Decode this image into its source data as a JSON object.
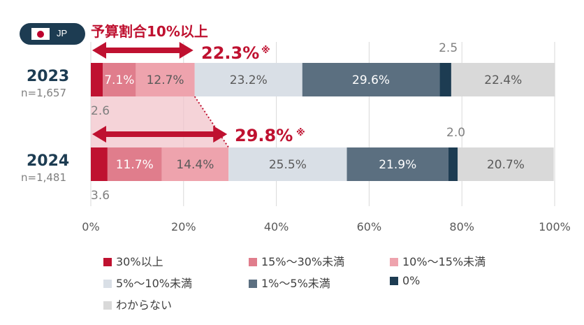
{
  "badge": {
    "country": "JP"
  },
  "annotation": {
    "title": "予算割合10%以上",
    "values": [
      "22.3%",
      "29.8%"
    ],
    "mark": "※"
  },
  "chart_data": {
    "type": "bar",
    "orientation": "horizontal",
    "stacked": true,
    "categories": [
      "2023",
      "2024"
    ],
    "sample_sizes": [
      "n=1,657",
      "n=1,481"
    ],
    "xlim": [
      0,
      100
    ],
    "x_ticks": [
      "0%",
      "20%",
      "40%",
      "60%",
      "80%",
      "100%"
    ],
    "grid": true,
    "legend_position": "bottom",
    "series": [
      {
        "name": "30%以上",
        "color": "#bf1130",
        "values": [
          2.6,
          3.6
        ],
        "labels": [
          "2.6",
          "3.6"
        ],
        "label_position": "below"
      },
      {
        "name": "15%～30%未満",
        "color": "#e07d8c",
        "values": [
          7.1,
          11.7
        ],
        "labels": [
          "7.1%",
          "11.7%"
        ],
        "label_position": "inside-light"
      },
      {
        "name": "10%～15%未満",
        "color": "#eea3ad",
        "values": [
          12.7,
          14.4
        ],
        "labels": [
          "12.7%",
          "14.4%"
        ],
        "label_position": "inside-dark"
      },
      {
        "name": "5%～10%未満",
        "color": "#d9dfe6",
        "values": [
          23.2,
          25.5
        ],
        "labels": [
          "23.2%",
          "25.5%"
        ],
        "label_position": "inside-dark"
      },
      {
        "name": "1%～5%未満",
        "color": "#5b6f80",
        "values": [
          29.6,
          21.9
        ],
        "labels": [
          "29.6%",
          "21.9%"
        ],
        "label_position": "inside-light"
      },
      {
        "name": "0%",
        "color": "#1d3c52",
        "values": [
          2.5,
          2.0
        ],
        "labels": [
          "2.5",
          "2.0"
        ],
        "label_position": "above"
      },
      {
        "name": "わからない",
        "color": "#d9d9d9",
        "values": [
          22.4,
          20.7
        ],
        "labels": [
          "22.4%",
          "20.7%"
        ],
        "label_position": "inside-dark"
      }
    ]
  }
}
